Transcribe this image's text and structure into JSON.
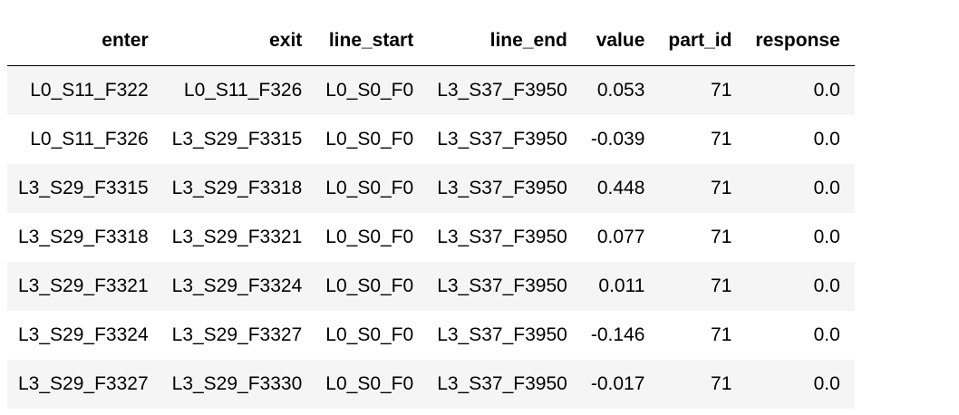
{
  "table": {
    "columns": [
      "enter",
      "exit",
      "line_start",
      "line_end",
      "value",
      "part_id",
      "response"
    ],
    "rows": [
      [
        "L0_S11_F322",
        "L0_S11_F326",
        "L0_S0_F0",
        "L3_S37_F3950",
        "0.053",
        "71",
        "0.0"
      ],
      [
        "L0_S11_F326",
        "L3_S29_F3315",
        "L0_S0_F0",
        "L3_S37_F3950",
        "-0.039",
        "71",
        "0.0"
      ],
      [
        "L3_S29_F3315",
        "L3_S29_F3318",
        "L0_S0_F0",
        "L3_S37_F3950",
        "0.448",
        "71",
        "0.0"
      ],
      [
        "L3_S29_F3318",
        "L3_S29_F3321",
        "L0_S0_F0",
        "L3_S37_F3950",
        "0.077",
        "71",
        "0.0"
      ],
      [
        "L3_S29_F3321",
        "L3_S29_F3324",
        "L0_S0_F0",
        "L3_S37_F3950",
        "0.011",
        "71",
        "0.0"
      ],
      [
        "L3_S29_F3324",
        "L3_S29_F3327",
        "L0_S0_F0",
        "L3_S37_F3950",
        "-0.146",
        "71",
        "0.0"
      ],
      [
        "L3_S29_F3327",
        "L3_S29_F3330",
        "L0_S0_F0",
        "L3_S37_F3950",
        "-0.017",
        "71",
        "0.0"
      ]
    ]
  },
  "colors": {
    "stripe_odd": "#f5f5f5",
    "stripe_even": "#ffffff",
    "header_rule": "#000000"
  }
}
